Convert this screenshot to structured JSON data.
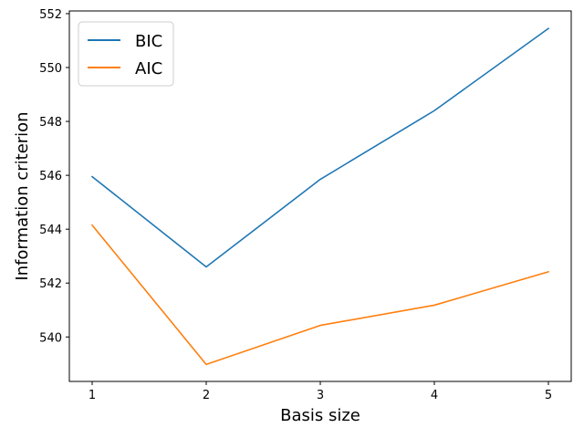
{
  "chart_data": {
    "type": "line",
    "title": "",
    "xlabel": "Basis size",
    "ylabel": "Information criterion",
    "x": [
      1,
      2,
      3,
      4,
      5
    ],
    "xticks": [
      "1",
      "2",
      "3",
      "4",
      "5"
    ],
    "xlim": [
      0.8,
      5.2
    ],
    "yticks": [
      "540",
      "542",
      "544",
      "546",
      "548",
      "550",
      "552"
    ],
    "ylim": [
      538.35,
      552.1
    ],
    "grid": false,
    "legend_position": "top-left",
    "series": [
      {
        "name": "BIC",
        "color": "#1f77b4",
        "values": [
          545.95,
          542.6,
          545.85,
          548.4,
          551.45
        ]
      },
      {
        "name": "AIC",
        "color": "#ff7f0e",
        "values": [
          544.15,
          538.98,
          540.43,
          541.18,
          542.42
        ]
      }
    ]
  }
}
